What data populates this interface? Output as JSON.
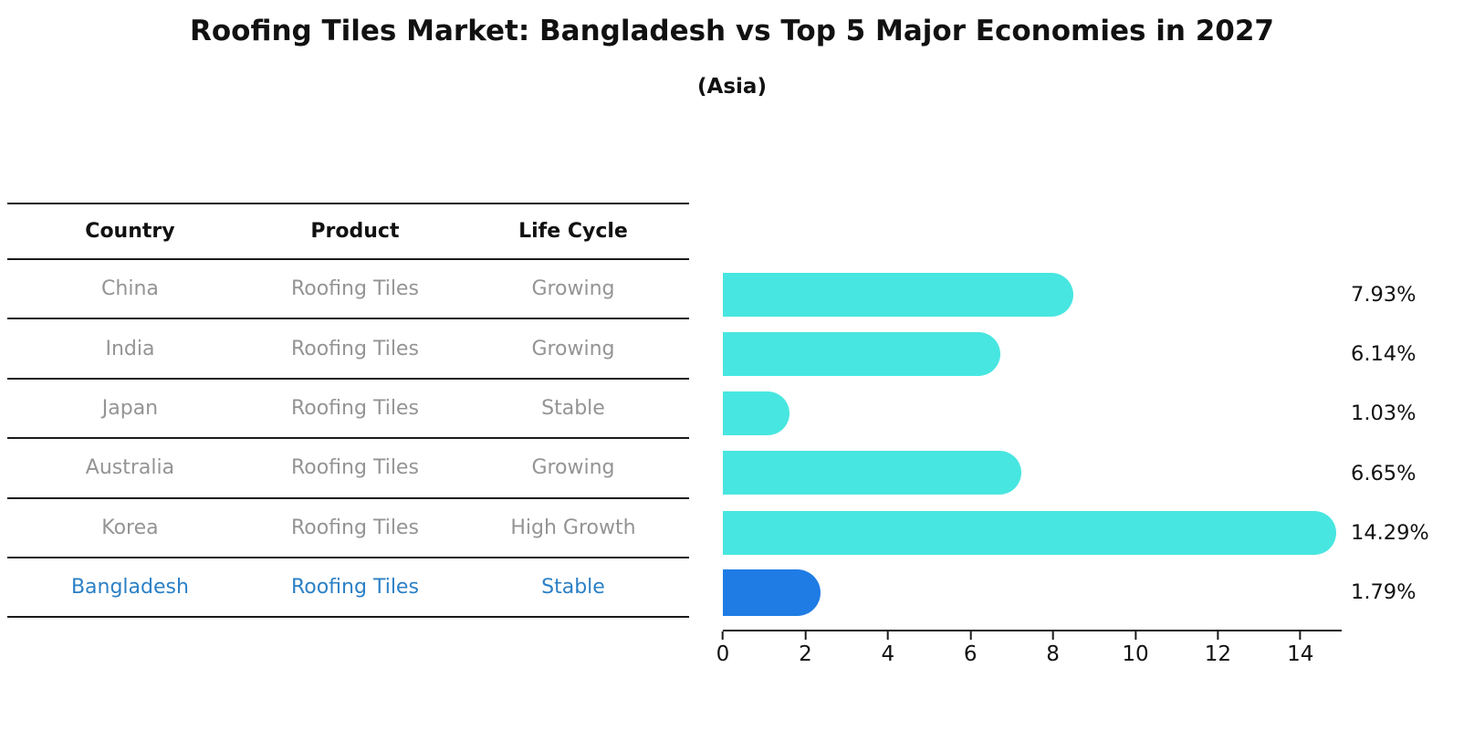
{
  "header": {
    "title": "Roofing Tiles Market: Bangladesh vs Top 5 Major Economies in 2027",
    "subtitle": "(Asia)"
  },
  "table": {
    "columns": [
      "Country",
      "Product",
      "Life Cycle"
    ],
    "rows": [
      {
        "country": "China",
        "product": "Roofing Tiles",
        "life_cycle": "Growing",
        "highlighted": false
      },
      {
        "country": "India",
        "product": "Roofing Tiles",
        "life_cycle": "Growing",
        "highlighted": false
      },
      {
        "country": "Japan",
        "product": "Roofing Tiles",
        "life_cycle": "Stable",
        "highlighted": false
      },
      {
        "country": "Australia",
        "product": "Roofing Tiles",
        "life_cycle": "Growing",
        "highlighted": false
      },
      {
        "country": "Korea",
        "product": "Roofing Tiles",
        "life_cycle": "High Growth",
        "highlighted": false
      },
      {
        "country": "Bangladesh",
        "product": "Roofing Tiles",
        "life_cycle": "Stable",
        "highlighted": true
      }
    ]
  },
  "chart_data": {
    "type": "bar",
    "orientation": "horizontal",
    "title": "Roofing Tiles Market: Bangladesh vs Top 5 Major Economies in 2027",
    "subtitle": "(Asia)",
    "categories": [
      "China",
      "India",
      "Japan",
      "Australia",
      "Korea",
      "Bangladesh"
    ],
    "values": [
      7.93,
      6.14,
      1.03,
      6.65,
      14.29,
      1.79
    ],
    "value_labels": [
      "7.93%",
      "6.14%",
      "1.03%",
      "6.65%",
      "14.29%",
      "1.79%"
    ],
    "xlim": [
      0,
      15
    ],
    "x_ticks": [
      0,
      2,
      4,
      6,
      8,
      10,
      12,
      14
    ],
    "grid": false,
    "legend": false,
    "bar_color": "#48E6E0",
    "highlight_color": "#1F7CE4",
    "highlight_index": 5
  },
  "colors": {
    "bar": "#48E6E0",
    "highlight_bar": "#1F7CE4",
    "highlight_text": "#2B80C6",
    "row_text": "#949494",
    "header_text": "#111111",
    "line": "#1A1A1A"
  }
}
